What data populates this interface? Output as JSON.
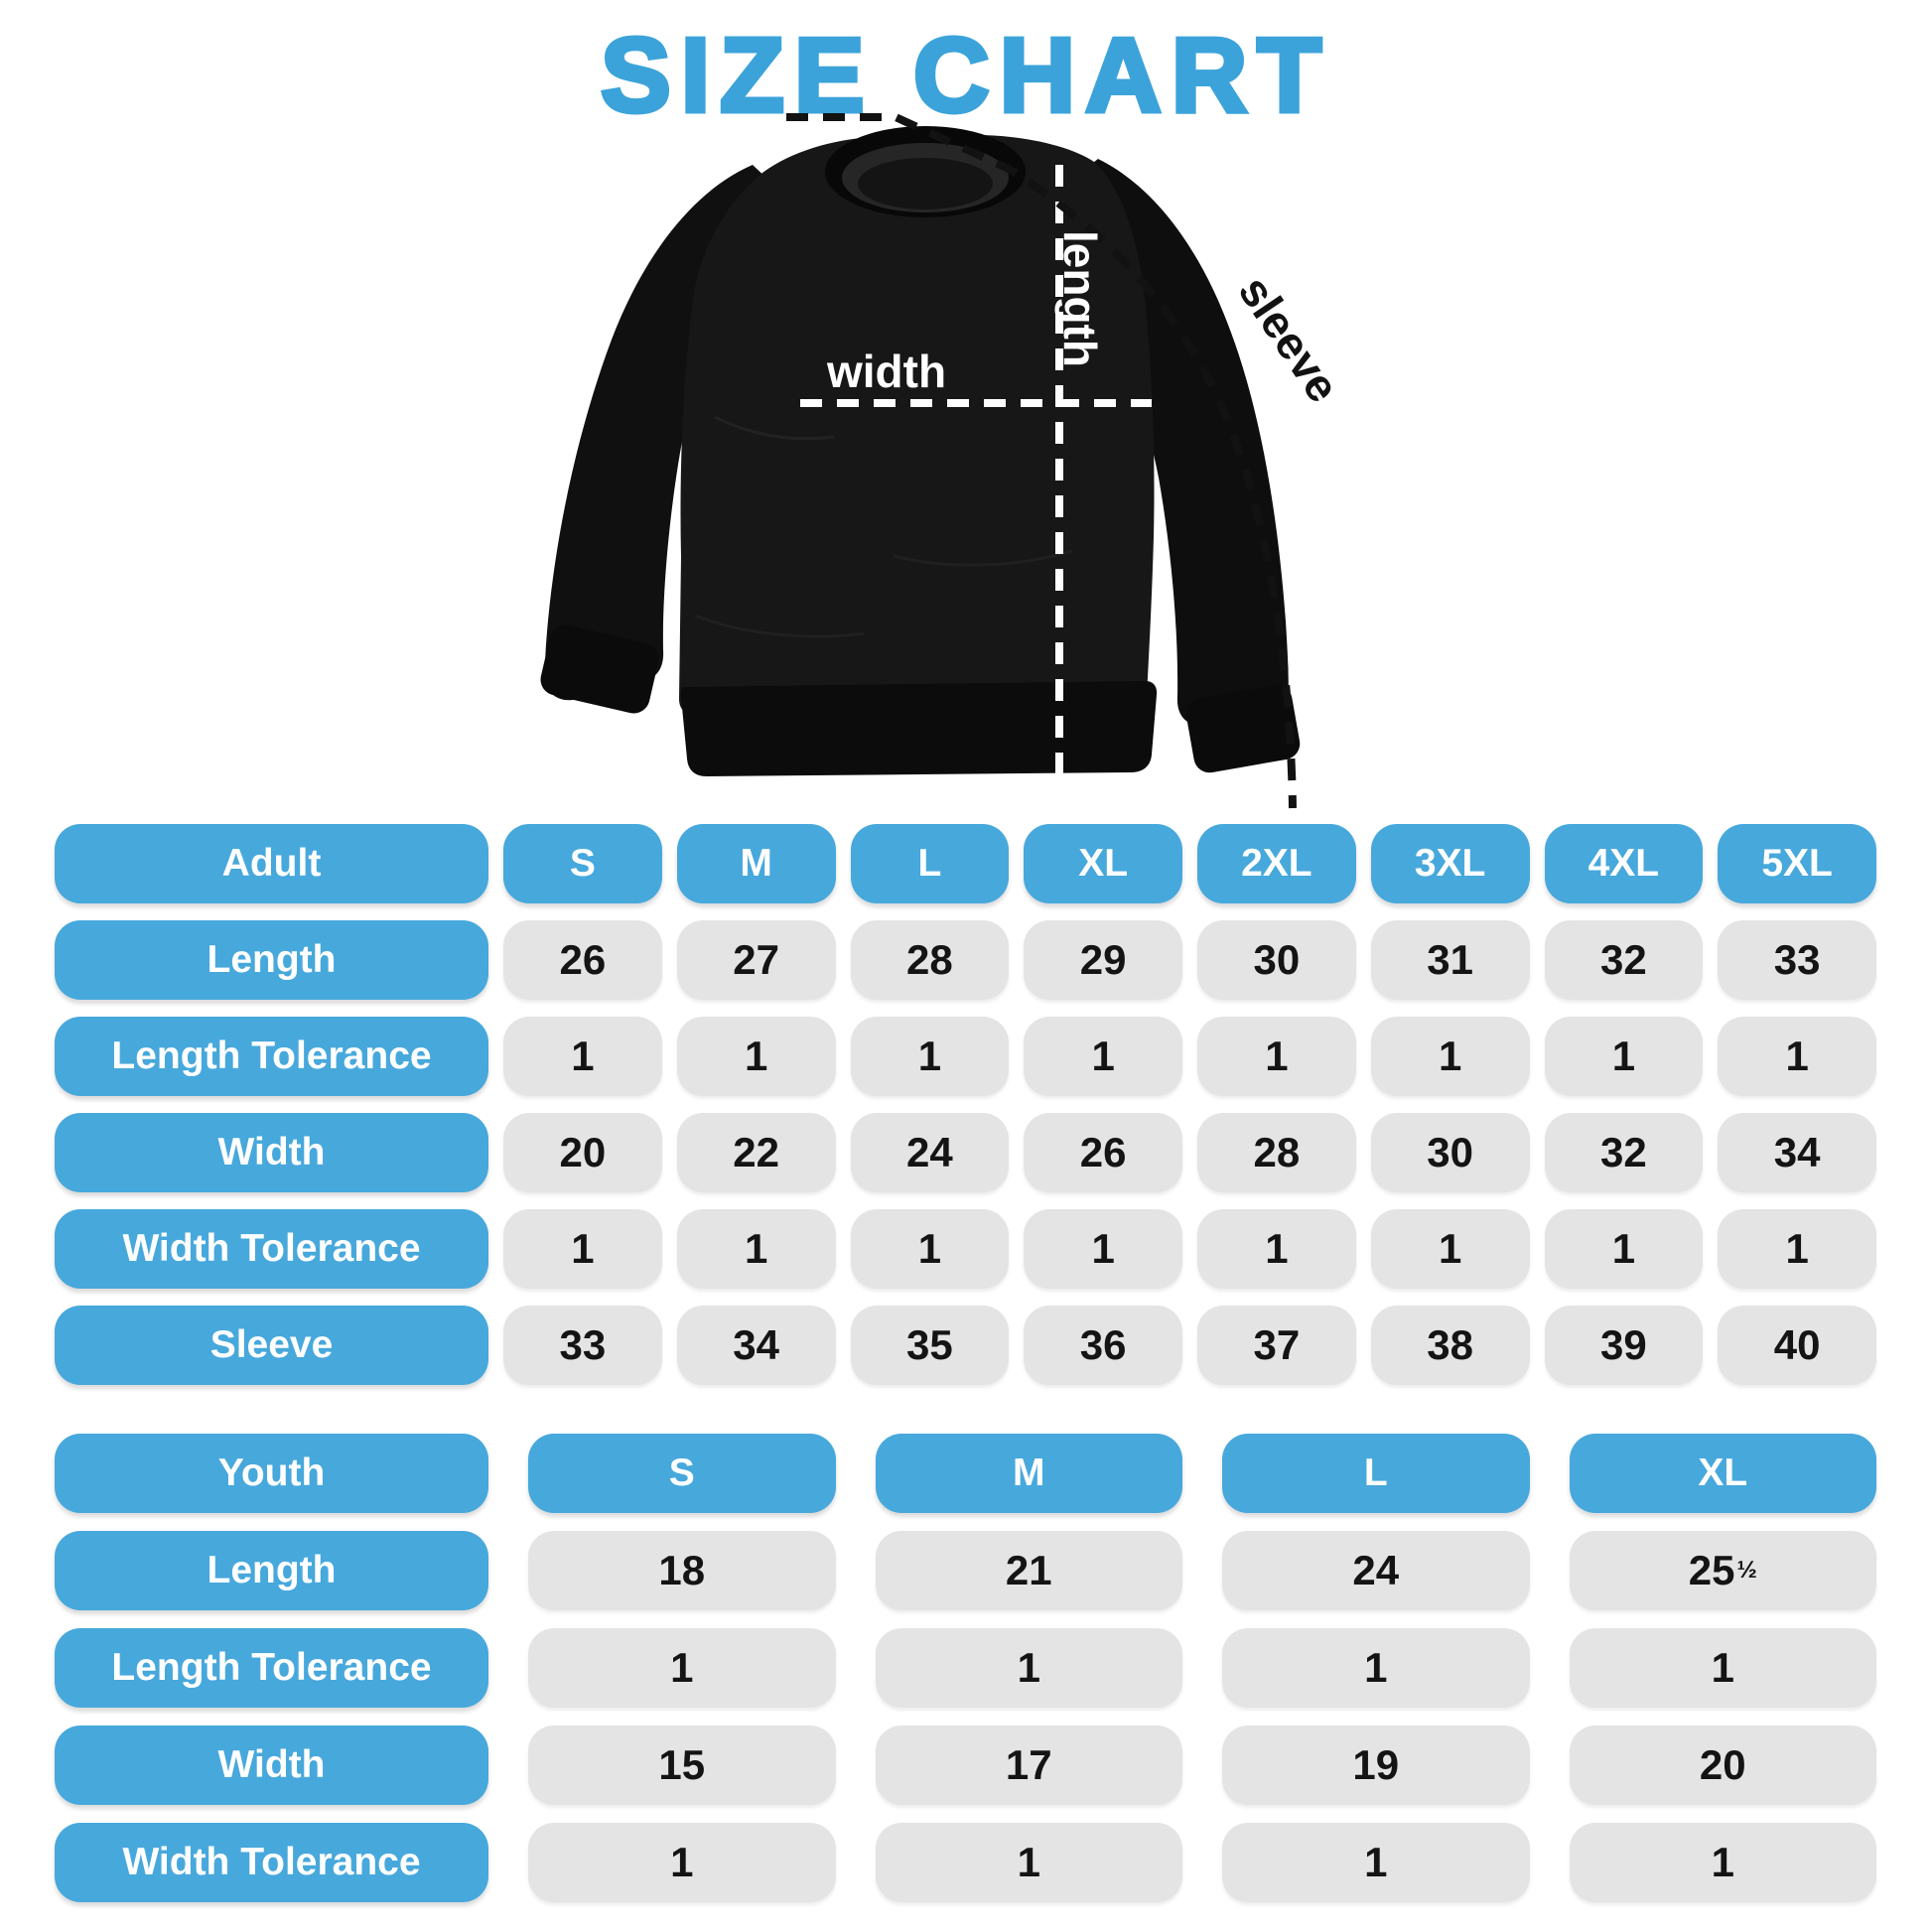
{
  "title": "SIZE CHART",
  "diagram_labels": {
    "length": "length",
    "width": "width",
    "sleeve": "sleeve"
  },
  "colors": {
    "accent_blue": "#47A8DC",
    "title_blue": "#3BA3DA",
    "cell_gray": "#E4E4E4",
    "number_black": "#141414",
    "garment_black": "#171717",
    "dash_white": "#FFFFFF",
    "dash_black": "#121212"
  },
  "chart_data": [
    {
      "type": "table",
      "name": "adult_sizes",
      "columns": [
        "Adult",
        "S",
        "M",
        "L",
        "XL",
        "2XL",
        "3XL",
        "4XL",
        "5XL"
      ],
      "rows": [
        {
          "label": "Length",
          "values": [
            "26",
            "27",
            "28",
            "29",
            "30",
            "31",
            "32",
            "33"
          ]
        },
        {
          "label": "Length Tolerance",
          "values": [
            "1",
            "1",
            "1",
            "1",
            "1",
            "1",
            "1",
            "1"
          ]
        },
        {
          "label": "Width",
          "values": [
            "20",
            "22",
            "24",
            "26",
            "28",
            "30",
            "32",
            "34"
          ]
        },
        {
          "label": "Width Tolerance",
          "values": [
            "1",
            "1",
            "1",
            "1",
            "1",
            "1",
            "1",
            "1"
          ]
        },
        {
          "label": "Sleeve",
          "values": [
            "33",
            "34",
            "35",
            "36",
            "37",
            "38",
            "39",
            "40"
          ]
        }
      ]
    },
    {
      "type": "table",
      "name": "youth_sizes",
      "columns": [
        "Youth",
        "S",
        "M",
        "L",
        "XL"
      ],
      "rows": [
        {
          "label": "Length",
          "values": [
            "18",
            "21",
            "24",
            "25½"
          ]
        },
        {
          "label": "Length Tolerance",
          "values": [
            "1",
            "1",
            "1",
            "1"
          ]
        },
        {
          "label": "Width",
          "values": [
            "15",
            "17",
            "19",
            "20"
          ]
        },
        {
          "label": "Width Tolerance",
          "values": [
            "1",
            "1",
            "1",
            "1"
          ]
        }
      ]
    }
  ]
}
